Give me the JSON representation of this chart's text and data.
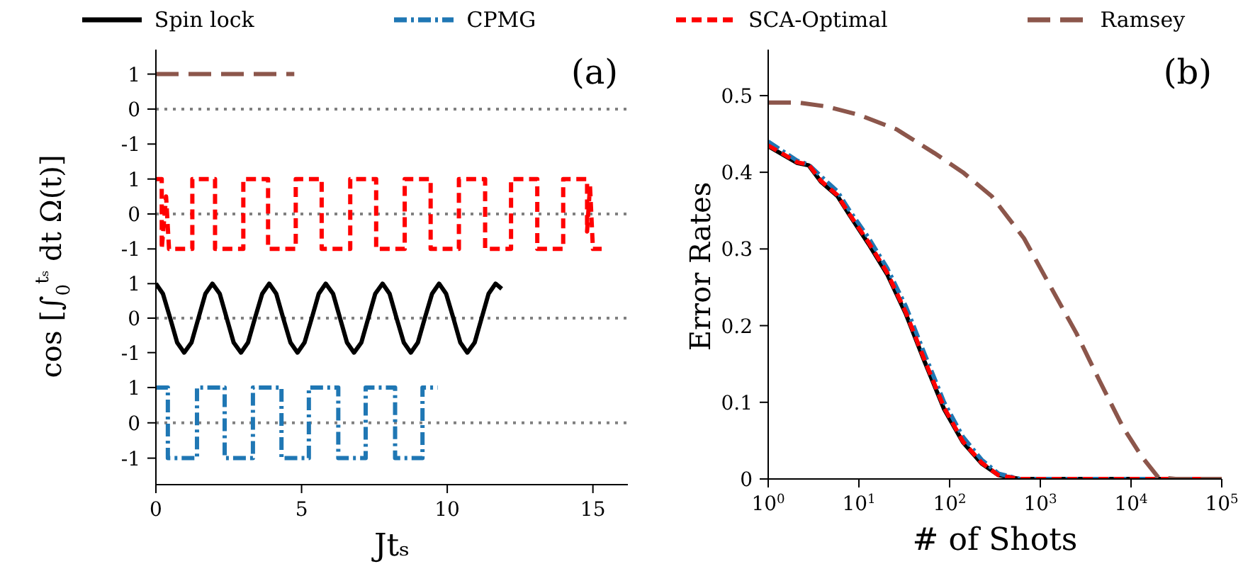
{
  "chart_data": [
    {
      "type": "line",
      "annotations": [
        "(a)"
      ],
      "tick_labels": "y",
      "marker": "none",
      "xlim": [
        0,
        16.2
      ],
      "ylim": [
        -1.5,
        1.7
      ],
      "yticks": [
        -1,
        0,
        1
      ],
      "ref_lines": [
        {
          "axis": "y",
          "value": 0,
          "color": "#808080",
          "line_style": "dotted"
        }
      ],
      "series": [
        {
          "color": "#8c564b",
          "line_style": "longdash",
          "x": [
            0,
            4.75
          ],
          "values": [
            1,
            1
          ]
        }
      ]
    },
    {
      "type": "line",
      "tick_labels": "y",
      "marker": "none",
      "ylabel": "cos [∫$_{0}$$^{tₛ}$ dt Ω(t)]",
      "xlim": [
        0,
        16.2
      ],
      "ylim": [
        -1.5,
        1.5
      ],
      "yticks": [
        -1,
        0,
        1
      ],
      "ref_lines": [
        {
          "axis": "y",
          "value": 0,
          "color": "#808080",
          "line_style": "dotted"
        }
      ],
      "series": [
        {
          "color": "#ff0000",
          "line_style": "dashed",
          "x": [
            0,
            0.2,
            0.2,
            0.35,
            0.45,
            1.25,
            1.25,
            2.03,
            2.03,
            3.0,
            3.0,
            3.85,
            3.85,
            4.8,
            4.8,
            5.69,
            5.69,
            6.67,
            6.67,
            7.56,
            7.56,
            8.54,
            8.54,
            9.43,
            9.43,
            10.4,
            10.4,
            11.3,
            11.3,
            12.19,
            12.19,
            13.09,
            13.09,
            13.98,
            13.98,
            14.8,
            14.8,
            14.9,
            15.0,
            15.3
          ],
          "values": [
            1,
            1,
            -1,
            0.5,
            -1,
            -1,
            1,
            1,
            -1,
            -1,
            1,
            1,
            -1,
            -1,
            1,
            1,
            -1,
            -1,
            1,
            1,
            -1,
            -1,
            1,
            1,
            -1,
            -1,
            1,
            1,
            -1,
            -1,
            1,
            1,
            -1,
            -1,
            1,
            1,
            -0.5,
            0.8,
            -1,
            -1
          ]
        }
      ]
    },
    {
      "type": "line",
      "tick_labels": "y",
      "marker": "none",
      "xlim": [
        0,
        16.2
      ],
      "ylim": [
        -1.5,
        1.5
      ],
      "yticks": [
        -1,
        0,
        1
      ],
      "ref_lines": [
        {
          "axis": "y",
          "value": 0,
          "color": "#808080",
          "line_style": "dotted"
        }
      ],
      "series": [
        {
          "color": "#000000",
          "line_style": "solid",
          "x": [
            0,
            0.24,
            0.49,
            0.73,
            0.97,
            1.22,
            1.46,
            1.7,
            1.94,
            2.19,
            2.43,
            2.67,
            2.92,
            3.16,
            3.4,
            3.65,
            3.89,
            4.13,
            4.37,
            4.62,
            4.86,
            5.1,
            5.35,
            5.59,
            5.83,
            6.08,
            6.32,
            6.56,
            6.8,
            7.05,
            7.29,
            7.53,
            7.78,
            8.02,
            8.26,
            8.51,
            8.75,
            8.99,
            9.23,
            9.48,
            9.72,
            9.96,
            10.21,
            10.45,
            10.69,
            10.94,
            11.18,
            11.42,
            11.66,
            11.87
          ],
          "values": [
            1,
            0.71,
            0,
            -0.71,
            -1,
            -0.71,
            0,
            0.71,
            1,
            0.71,
            0,
            -0.71,
            -1,
            -0.71,
            0,
            0.71,
            1,
            0.71,
            0,
            -0.71,
            -1,
            -0.71,
            0,
            0.71,
            1,
            0.71,
            0,
            -0.71,
            -1,
            -0.71,
            0,
            0.71,
            1,
            0.71,
            0,
            -0.71,
            -1,
            -0.71,
            0,
            0.71,
            1,
            0.71,
            0,
            -0.71,
            -1,
            -0.71,
            0,
            0.71,
            1,
            0.85
          ]
        }
      ]
    },
    {
      "type": "line",
      "marker": "none",
      "xlabel": "Jtₛ",
      "xlim": [
        0,
        16.2
      ],
      "xticks": [
        0,
        5,
        10,
        15
      ],
      "ylim": [
        -1.75,
        1.5
      ],
      "yticks": [
        -1,
        0,
        1
      ],
      "ref_lines": [
        {
          "axis": "y",
          "value": 0,
          "color": "#808080",
          "line_style": "dotted"
        }
      ],
      "series": [
        {
          "color": "#1f77b4",
          "line_style": "dashdot",
          "x": [
            0,
            0.41,
            0.41,
            1.41,
            1.41,
            2.36,
            2.36,
            3.33,
            3.33,
            4.31,
            4.31,
            5.25,
            5.25,
            6.26,
            6.26,
            7.2,
            7.2,
            8.21,
            8.21,
            9.15,
            9.15,
            9.67
          ],
          "values": [
            1,
            1,
            -1,
            -1,
            1,
            1,
            -1,
            -1,
            1,
            1,
            -1,
            -1,
            1,
            1,
            -1,
            -1,
            1,
            1,
            -1,
            -1,
            1,
            1
          ]
        }
      ]
    },
    {
      "type": "line",
      "annotations": [
        "(b)"
      ],
      "xlabel": "# of Shots",
      "ylabel": "Error Rates",
      "log": "x",
      "legend": "top",
      "marker": "none",
      "xlim": [
        1,
        100000
      ],
      "xticks": [
        {
          "value": 1,
          "label": "10$^{0}$"
        },
        {
          "value": 10,
          "label": "10$^{1}$"
        },
        {
          "value": 100,
          "label": "10$^{2}$"
        },
        {
          "value": 1000,
          "label": "10$^{3}$"
        },
        {
          "value": 10000,
          "label": "10$^{4}$"
        },
        {
          "value": 100000,
          "label": "10$^{5}$"
        }
      ],
      "ylim": [
        0,
        0.56
      ],
      "yticks": [
        0,
        0.1,
        0.2,
        0.3,
        0.4,
        0.5
      ],
      "series": [
        {
          "name": "Spin lock",
          "color": "#000000",
          "line_style": "solid",
          "x": [
            1,
            2.1,
            2.8,
            3.8,
            5.8,
            7.9,
            12.7,
            20.5,
            33,
            53,
            87,
            140,
            226,
            345,
            590,
            100000
          ],
          "values": [
            0.434,
            0.412,
            0.409,
            0.388,
            0.369,
            0.344,
            0.307,
            0.267,
            0.215,
            0.153,
            0.091,
            0.048,
            0.02,
            0.005,
            0,
            0
          ]
        },
        {
          "name": "CPMG",
          "color": "#1f77b4",
          "line_style": "dashdot",
          "x": [
            1,
            2.1,
            2.8,
            3.8,
            5.8,
            7.9,
            12.7,
            20.5,
            33,
            53,
            87,
            140,
            226,
            345,
            590,
            100000
          ],
          "values": [
            0.44,
            0.415,
            0.41,
            0.395,
            0.375,
            0.35,
            0.315,
            0.275,
            0.225,
            0.163,
            0.1,
            0.055,
            0.025,
            0.007,
            0,
            0
          ]
        },
        {
          "name": "SCA-Optimal",
          "color": "#ff0000",
          "line_style": "dashed",
          "x": [
            1,
            2.1,
            2.8,
            3.8,
            5.8,
            7.9,
            12.7,
            20.5,
            33,
            53,
            87,
            140,
            226,
            345,
            590,
            100000
          ],
          "values": [
            0.435,
            0.413,
            0.41,
            0.389,
            0.37,
            0.345,
            0.309,
            0.269,
            0.217,
            0.155,
            0.093,
            0.049,
            0.021,
            0.005,
            0,
            0
          ]
        },
        {
          "name": "Ramsey",
          "color": "#8c564b",
          "line_style": "longdash",
          "x": [
            1,
            2.1,
            4.3,
            10,
            26,
            68,
            140,
            290,
            660,
            1200,
            2500,
            4500,
            8200,
            13000,
            20000,
            31000,
            100000
          ],
          "values": [
            0.491,
            0.491,
            0.486,
            0.475,
            0.456,
            0.425,
            0.4,
            0.369,
            0.314,
            0.258,
            0.19,
            0.128,
            0.067,
            0.03,
            0.002,
            0,
            0
          ]
        }
      ]
    }
  ]
}
